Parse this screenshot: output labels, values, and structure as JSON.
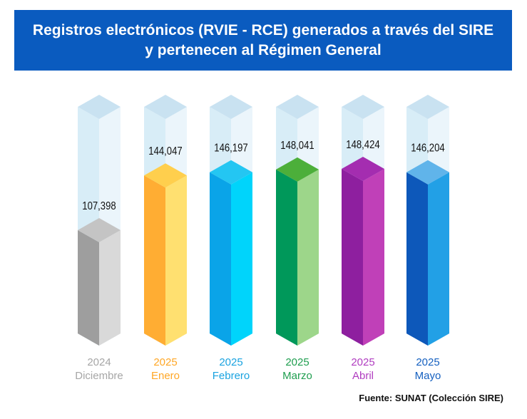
{
  "title": "Registros electrónicos (RVIE - RCE) generados a través del SIRE y pertenecen al Régimen General",
  "source": "Fuente: SUNAT (Colección SIRE)",
  "chart_data": {
    "type": "bar",
    "style": "3d-cylinder-columns",
    "title": "Registros electrónicos (RVIE - RCE) generados a través del SIRE y pertenecen al Régimen General",
    "categories": [
      {
        "year": "2024",
        "month": "Diciembre"
      },
      {
        "year": "2025",
        "month": "Enero"
      },
      {
        "year": "2025",
        "month": "Febrero"
      },
      {
        "year": "2025",
        "month": "Marzo"
      },
      {
        "year": "2025",
        "month": "Abril"
      },
      {
        "year": "2025",
        "month": "Mayo"
      }
    ],
    "values": [
      107398,
      144047,
      146197,
      148041,
      148424,
      146204
    ],
    "value_labels": [
      "107,398",
      "144,047",
      "146,197",
      "148,041",
      "148,424",
      "146,204"
    ],
    "ylim": [
      30000,
      190000
    ],
    "xlabel": "",
    "ylabel": "",
    "colors": [
      {
        "top": "#c4c4c4",
        "left": "#9e9e9e",
        "right": "#d9d9d9",
        "label": "#a6a6a6"
      },
      {
        "top": "#ffcf4d",
        "left": "#ffad33",
        "right": "#ffe070",
        "label": "#ffa726"
      },
      {
        "top": "#24c6f2",
        "left": "#0aa4e8",
        "right": "#00d4fb",
        "label": "#1aa3e0"
      },
      {
        "top": "#4caf3a",
        "left": "#00985a",
        "right": "#9dd68a",
        "label": "#1f9e4f"
      },
      {
        "top": "#a42db0",
        "left": "#8e1f9f",
        "right": "#c040b8",
        "label": "#b03cc0"
      },
      {
        "top": "#60b4ea",
        "left": "#0d58ba",
        "right": "#22a0e6",
        "label": "#1560c0"
      }
    ],
    "ghost_colors": {
      "top": "#c9e2f1",
      "left": "#d8edf7",
      "right": "#ebf5fb"
    }
  }
}
